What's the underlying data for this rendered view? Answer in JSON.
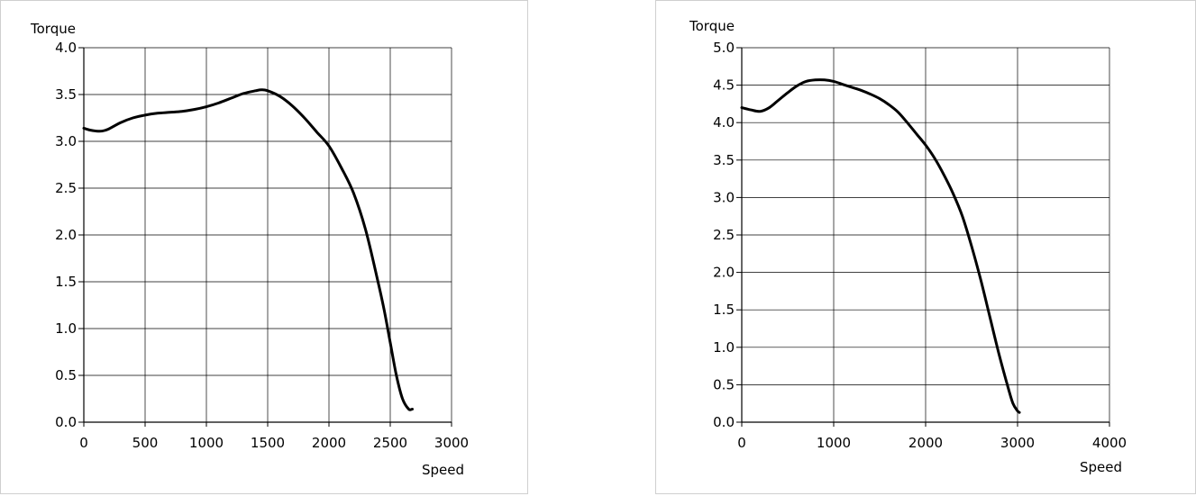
{
  "chart_data": [
    {
      "type": "line",
      "title": "",
      "xlabel": "Speed",
      "ylabel": "Torque",
      "xlim": [
        0,
        3000
      ],
      "ylim": [
        0.0,
        4.0
      ],
      "x_ticks": [
        "0",
        "500",
        "1000",
        "1500",
        "2000",
        "2500",
        "3000"
      ],
      "y_ticks": [
        "0.0",
        "0.5",
        "1.0",
        "1.5",
        "2.0",
        "2.5",
        "3.0",
        "3.5",
        "4.0"
      ],
      "grid": true,
      "series": [
        {
          "x": [
            0,
            50,
            100,
            150,
            200,
            300,
            400,
            500,
            600,
            700,
            800,
            900,
            1000,
            1100,
            1200,
            1300,
            1400,
            1450,
            1500,
            1600,
            1700,
            1800,
            1900,
            2000,
            2100,
            2200,
            2300,
            2400,
            2450,
            2500,
            2550,
            2600,
            2650,
            2680
          ],
          "y": [
            3.14,
            3.12,
            3.11,
            3.11,
            3.13,
            3.2,
            3.25,
            3.28,
            3.3,
            3.31,
            3.32,
            3.34,
            3.37,
            3.41,
            3.46,
            3.51,
            3.54,
            3.55,
            3.54,
            3.48,
            3.38,
            3.25,
            3.1,
            2.95,
            2.72,
            2.45,
            2.05,
            1.5,
            1.2,
            0.85,
            0.5,
            0.25,
            0.14,
            0.14
          ]
        }
      ]
    },
    {
      "type": "line",
      "title": "",
      "xlabel": "Speed",
      "ylabel": "Torque",
      "xlim": [
        0,
        4000
      ],
      "ylim": [
        0.0,
        5.0
      ],
      "x_ticks": [
        "0",
        "1000",
        "2000",
        "3000",
        "4000"
      ],
      "y_ticks": [
        "0.0",
        "0.5",
        "1.0",
        "1.5",
        "2.0",
        "2.5",
        "3.0",
        "3.5",
        "4.0",
        "4.5",
        "5.0"
      ],
      "grid": true,
      "series": [
        {
          "x": [
            0,
            100,
            200,
            300,
            400,
            500,
            600,
            700,
            800,
            900,
            1000,
            1100,
            1200,
            1300,
            1400,
            1500,
            1600,
            1700,
            1800,
            1900,
            2000,
            2100,
            2200,
            2300,
            2400,
            2500,
            2600,
            2700,
            2800,
            2900,
            2950,
            3000,
            3020
          ],
          "y": [
            4.2,
            4.17,
            4.15,
            4.2,
            4.3,
            4.4,
            4.49,
            4.55,
            4.57,
            4.57,
            4.55,
            4.51,
            4.47,
            4.43,
            4.38,
            4.32,
            4.24,
            4.14,
            4.0,
            3.85,
            3.7,
            3.52,
            3.3,
            3.05,
            2.75,
            2.35,
            1.9,
            1.4,
            0.9,
            0.45,
            0.25,
            0.15,
            0.13
          ]
        }
      ]
    }
  ]
}
